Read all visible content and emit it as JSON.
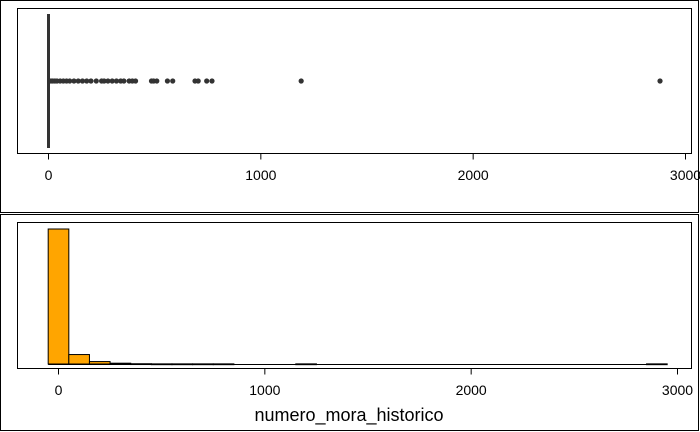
{
  "chart_data": [
    {
      "type": "boxplot",
      "variable": "numero_mora_historico",
      "xlim": [
        -40,
        3000
      ],
      "x_ticks": [
        0,
        1000,
        2000,
        3000
      ],
      "box": {
        "min": 0,
        "q1": 0,
        "median": 0,
        "q3": 0,
        "whisker_high": 0
      },
      "outliers": [
        5,
        12,
        20,
        30,
        40,
        55,
        70,
        85,
        100,
        120,
        140,
        160,
        180,
        200,
        225,
        250,
        262,
        280,
        300,
        320,
        340,
        355,
        380,
        395,
        410,
        485,
        495,
        510,
        560,
        585,
        690,
        705,
        745,
        770,
        1190,
        2880
      ],
      "colors": {
        "box": "#333333",
        "points": "#333333"
      }
    },
    {
      "type": "histogram",
      "variable": "numero_mora_historico",
      "xlabel": "numero_mora_historico",
      "xlim": [
        -50,
        3000
      ],
      "x_ticks": [
        0,
        1000,
        2000,
        3000
      ],
      "bins": [
        {
          "x0": -50,
          "x1": 50,
          "count": 1000
        },
        {
          "x0": 50,
          "x1": 150,
          "count": 70
        },
        {
          "x0": 150,
          "x1": 250,
          "count": 18
        },
        {
          "x0": 250,
          "x1": 350,
          "count": 6
        },
        {
          "x0": 350,
          "x1": 450,
          "count": 2
        },
        {
          "x0": 450,
          "x1": 550,
          "count": 1
        },
        {
          "x0": 550,
          "x1": 650,
          "count": 1
        },
        {
          "x0": 650,
          "x1": 750,
          "count": 1
        },
        {
          "x0": 750,
          "x1": 850,
          "count": 1
        },
        {
          "x0": 850,
          "x1": 950,
          "count": 0
        },
        {
          "x0": 950,
          "x1": 1050,
          "count": 0
        },
        {
          "x0": 1050,
          "x1": 1150,
          "count": 0
        },
        {
          "x0": 1150,
          "x1": 1250,
          "count": 1
        },
        {
          "x0": 1250,
          "x1": 1350,
          "count": 0
        },
        {
          "x0": 1350,
          "x1": 1450,
          "count": 0
        },
        {
          "x0": 1450,
          "x1": 1550,
          "count": 0
        },
        {
          "x0": 1550,
          "x1": 1650,
          "count": 0
        },
        {
          "x0": 1650,
          "x1": 1750,
          "count": 0
        },
        {
          "x0": 1750,
          "x1": 1850,
          "count": 0
        },
        {
          "x0": 1850,
          "x1": 1950,
          "count": 0
        },
        {
          "x0": 1950,
          "x1": 2050,
          "count": 0
        },
        {
          "x0": 2050,
          "x1": 2150,
          "count": 0
        },
        {
          "x0": 2150,
          "x1": 2250,
          "count": 0
        },
        {
          "x0": 2250,
          "x1": 2350,
          "count": 0
        },
        {
          "x0": 2350,
          "x1": 2450,
          "count": 0
        },
        {
          "x0": 2450,
          "x1": 2550,
          "count": 0
        },
        {
          "x0": 2550,
          "x1": 2650,
          "count": 0
        },
        {
          "x0": 2650,
          "x1": 2750,
          "count": 0
        },
        {
          "x0": 2750,
          "x1": 2850,
          "count": 0
        },
        {
          "x0": 2850,
          "x1": 2950,
          "count": 1
        }
      ],
      "ylim": [
        0,
        1000
      ],
      "colors": {
        "fill": "#FFA500",
        "stroke": "#000000"
      }
    }
  ]
}
